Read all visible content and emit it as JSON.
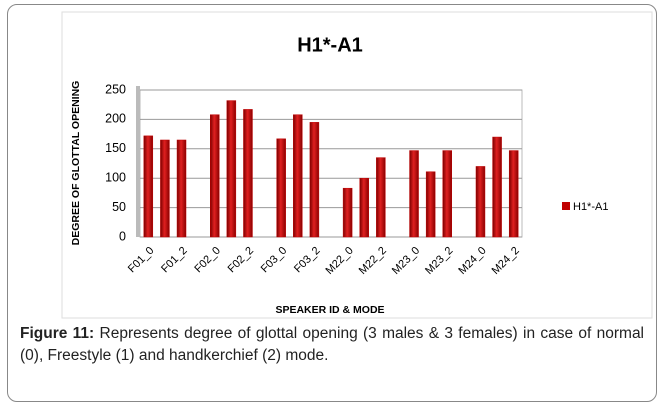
{
  "chart_data": {
    "type": "bar",
    "title": "H1*-A1",
    "y_label": "DEGREE OF GLOTTAL OPENING",
    "x_label": "SPEAKER ID & MODE",
    "categories": [
      "F01_0",
      null,
      "F01_2",
      null,
      "F02_0",
      null,
      "F02_2",
      null,
      "F03_0",
      null,
      "F03_2",
      null,
      "M22_0",
      null,
      "M22_2",
      null,
      "M23_0",
      null,
      "M23_2",
      null,
      "M24_0",
      null,
      "M24_2"
    ],
    "series": [
      {
        "name": "H1*-A1",
        "color": "#c00000",
        "values": [
          172,
          165,
          165,
          null,
          208,
          232,
          217,
          null,
          167,
          208,
          195,
          null,
          83,
          100,
          135,
          null,
          147,
          111,
          147,
          null,
          120,
          170,
          147
        ]
      }
    ],
    "ylim": [
      0,
      250
    ],
    "yticks": [
      0,
      50,
      100,
      150,
      200,
      250
    ],
    "grid": true,
    "legend": "right"
  },
  "caption": {
    "label": "Figure 11:",
    "text": "Represents degree of glottal opening (3 males & 3 females) in case of normal (0), Freestyle (1) and handkerchief (2) mode."
  }
}
